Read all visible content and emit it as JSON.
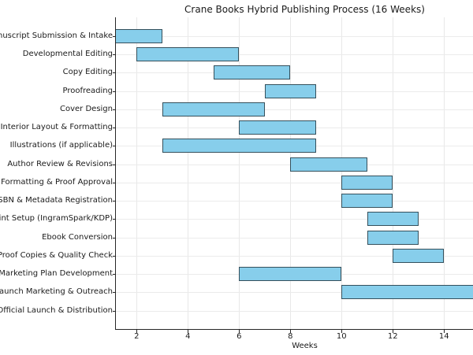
{
  "title": "Crane Books Hybrid Publishing Process (16 Weeks)",
  "x_axis": {
    "label": "Weeks"
  },
  "colors": {
    "bar_fill": "#87CEEB",
    "bar_edge": "#35505C",
    "gridline": "#e8e8e8",
    "axis": "#262626",
    "text": "#1a1a1a",
    "background": "#ffffff"
  },
  "chart_data": {
    "type": "bar",
    "subtype": "gantt-horizontal",
    "title": "Crane Books Hybrid Publishing Process (16 Weeks)",
    "xlabel": "Weeks",
    "x_ticks": [
      2,
      4,
      6,
      8,
      10,
      12,
      14
    ],
    "xlim_visible": [
      1.2,
      15.1
    ],
    "grid": true,
    "legend": false,
    "tasks": [
      {
        "label": "Manuscript Submission & Intake",
        "start_week": 1,
        "end_week": 3
      },
      {
        "label": "Developmental Editing",
        "start_week": 2,
        "end_week": 6
      },
      {
        "label": "Copy Editing",
        "start_week": 5,
        "end_week": 8
      },
      {
        "label": "Proofreading",
        "start_week": 7,
        "end_week": 9
      },
      {
        "label": "Cover Design",
        "start_week": 3,
        "end_week": 7
      },
      {
        "label": "Interior Layout & Formatting",
        "start_week": 6,
        "end_week": 9
      },
      {
        "label": "Illustrations (if applicable)",
        "start_week": 3,
        "end_week": 9
      },
      {
        "label": "Author Review & Revisions",
        "start_week": 8,
        "end_week": 11
      },
      {
        "label": "Final Formatting & Proof Approval",
        "start_week": 10,
        "end_week": 12
      },
      {
        "label": "ISBN & Metadata Registration",
        "start_week": 10,
        "end_week": 12
      },
      {
        "label": "Print Setup (IngramSpark/KDP)",
        "start_week": 11,
        "end_week": 13
      },
      {
        "label": "Ebook Conversion",
        "start_week": 11,
        "end_week": 13
      },
      {
        "label": "Proof Copies & Quality Check",
        "start_week": 12,
        "end_week": 14
      },
      {
        "label": "Marketing Plan Development",
        "start_week": 6,
        "end_week": 10
      },
      {
        "label": "Launch Marketing & Outreach",
        "start_week": 10,
        "end_week": 16
      },
      {
        "label": "Official Launch & Distribution",
        "start_week": null,
        "end_week": null
      }
    ]
  }
}
